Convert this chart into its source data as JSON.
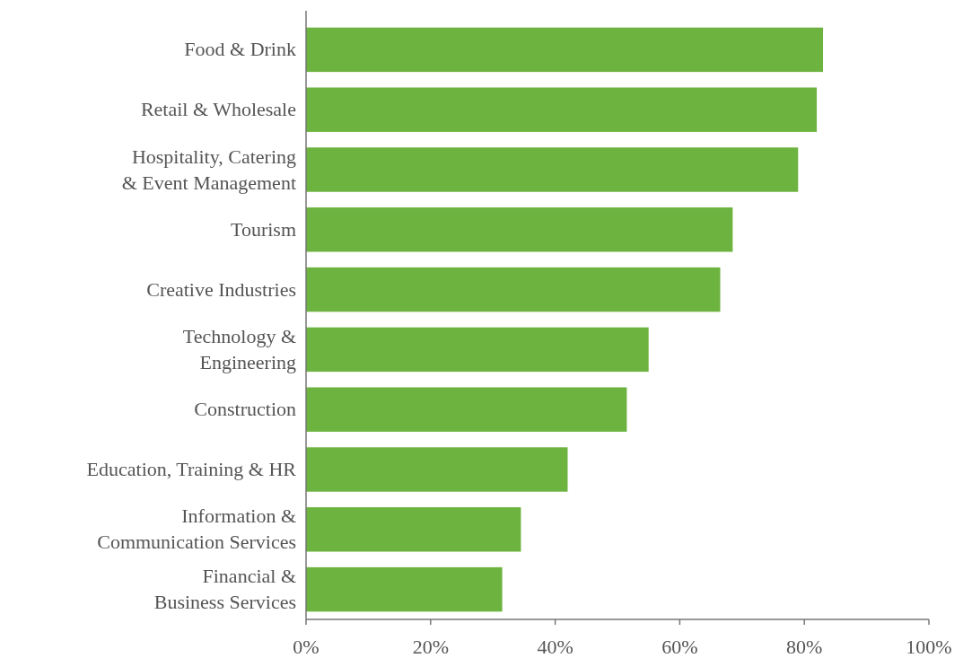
{
  "chart_data": {
    "type": "bar",
    "orientation": "horizontal",
    "categories": [
      "Food & Drink",
      "Retail & Wholesale",
      "Hospitality, Catering\n& Event Management",
      "Tourism",
      "Creative Industries",
      "Technology &\nEngineering",
      "Construction",
      "Education, Training & HR",
      "Information &\nCommunication Services",
      "Financial &\nBusiness Services"
    ],
    "values": [
      83,
      82,
      79,
      68.5,
      66.5,
      55,
      51.5,
      42,
      34.5,
      31.5
    ],
    "color": "#6db33f",
    "xlim": [
      0,
      100
    ],
    "xticks": [
      {
        "value": 0,
        "label": "0%"
      },
      {
        "value": 20,
        "label": "20%"
      },
      {
        "value": 40,
        "label": "40%"
      },
      {
        "value": 60,
        "label": "60%"
      },
      {
        "value": 80,
        "label": "80%"
      },
      {
        "value": 100,
        "label": "100%"
      }
    ],
    "grid": false
  }
}
